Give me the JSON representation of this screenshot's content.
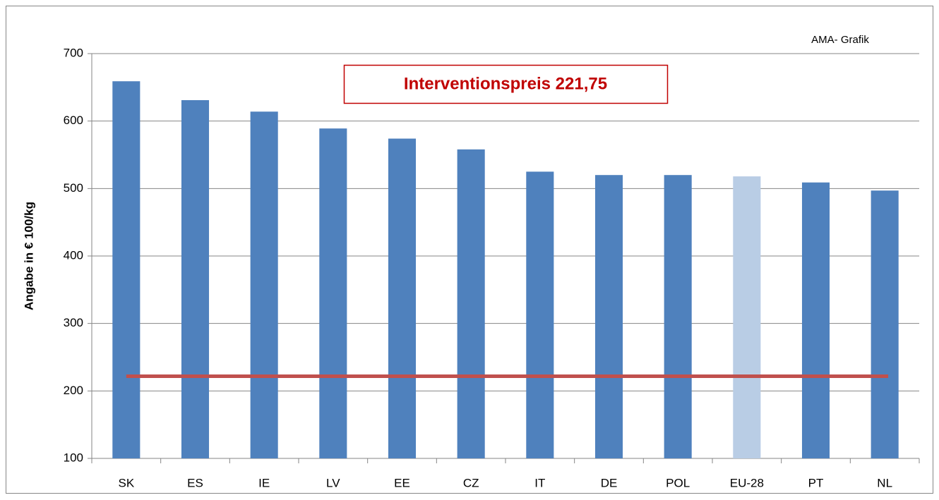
{
  "chart_data": {
    "type": "bar",
    "y_label": "Angabe in € 100/kg",
    "source": "AMA- Grafik",
    "annotation": "Interventionspreis 221,75",
    "reference_line": {
      "value": 221.75,
      "color": "#c0504d"
    },
    "categories": [
      "SK",
      "ES",
      "IE",
      "LV",
      "EE",
      "CZ",
      "IT",
      "DE",
      "POL",
      "EU-28",
      "PT",
      "NL"
    ],
    "values": [
      659,
      631,
      614,
      589,
      574,
      558,
      525,
      520,
      520,
      518,
      509,
      497
    ],
    "colors": [
      "#4f81bd",
      "#4f81bd",
      "#4f81bd",
      "#4f81bd",
      "#4f81bd",
      "#4f81bd",
      "#4f81bd",
      "#4f81bd",
      "#4f81bd",
      "#b9cde5",
      "#4f81bd",
      "#4f81bd"
    ],
    "ylim": [
      100,
      700
    ],
    "yticks": [
      100,
      200,
      300,
      400,
      500,
      600,
      700
    ],
    "grid": true
  }
}
